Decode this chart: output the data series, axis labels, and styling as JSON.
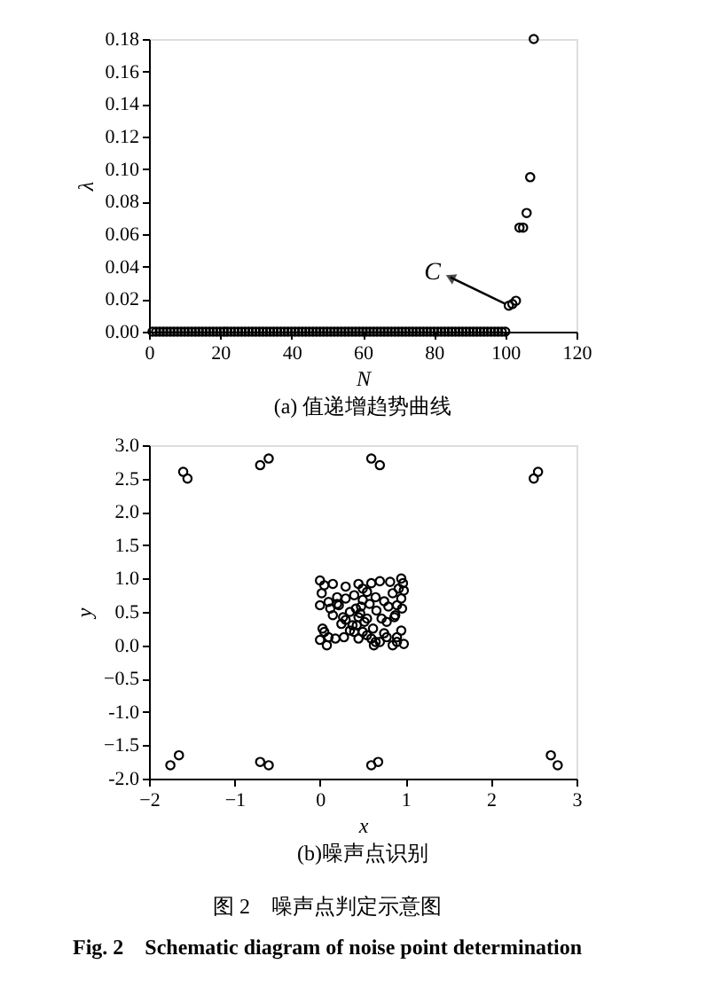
{
  "chart_data": [
    {
      "type": "scatter",
      "title": "(a)  值递增趋势曲线",
      "xlabel": "N",
      "ylabel": "λ",
      "marker": "circle",
      "grid": false,
      "x": [
        1,
        2,
        3,
        4,
        5,
        6,
        7,
        8,
        9,
        10,
        11,
        12,
        13,
        14,
        15,
        16,
        17,
        18,
        19,
        20,
        21,
        22,
        23,
        24,
        25,
        26,
        27,
        28,
        29,
        30,
        31,
        32,
        33,
        34,
        35,
        36,
        37,
        38,
        39,
        40,
        41,
        42,
        43,
        44,
        45,
        46,
        47,
        48,
        49,
        50,
        51,
        52,
        53,
        54,
        55,
        56,
        57,
        58,
        59,
        60,
        61,
        62,
        63,
        64,
        65,
        66,
        67,
        68,
        69,
        70,
        71,
        72,
        73,
        74,
        75,
        76,
        77,
        78,
        79,
        80,
        81,
        82,
        83,
        84,
        85,
        86,
        87,
        88,
        89,
        90,
        91,
        92,
        93,
        94,
        95,
        96,
        97,
        98,
        99,
        100,
        101,
        102,
        103,
        104,
        105,
        106,
        107,
        108
      ],
      "series": [
        {
          "color": "#000000",
          "values": [
            0,
            0,
            0,
            0,
            0,
            0,
            0,
            0,
            0,
            0,
            0,
            0,
            0,
            0,
            0,
            0,
            0,
            0,
            0,
            0,
            0,
            0,
            0,
            0,
            0,
            0,
            0,
            0,
            0,
            0,
            0,
            0,
            0,
            0,
            0,
            0,
            0,
            0,
            0,
            0,
            0,
            0,
            0,
            0,
            0,
            0,
            0,
            0,
            0,
            0,
            0,
            0,
            0,
            0,
            0,
            0,
            0,
            0,
            0,
            0,
            0,
            0,
            0,
            0,
            0,
            0,
            0,
            0,
            0,
            0,
            0,
            0,
            0,
            0,
            0,
            0,
            0,
            0,
            0,
            0,
            0,
            0,
            0,
            0,
            0,
            0,
            0,
            0,
            0,
            0,
            0,
            0,
            0,
            0,
            0,
            0,
            0,
            0,
            0,
            0,
            0.016,
            0.017,
            0.019,
            0.064,
            0.064,
            0.073,
            0.095,
            0.18
          ]
        }
      ],
      "xlim": [
        0,
        120
      ],
      "xticks": [
        0,
        20,
        40,
        60,
        80,
        100,
        120
      ],
      "ylim": [
        0,
        0.18
      ],
      "yticks": [
        {
          "value": 0,
          "label": "0.00"
        },
        0.02,
        0.04,
        0.06,
        0.08,
        {
          "value": 0.1,
          "label": "0.10"
        },
        0.12,
        0.14,
        0.16,
        0.18
      ],
      "annotations": [
        {
          "text": "C",
          "x": 101,
          "y": 0.016
        }
      ]
    },
    {
      "type": "scatter",
      "title": "(b)噪声点识别",
      "xlabel": "x",
      "ylabel": "y",
      "marker": "circle",
      "grid": false,
      "series": [
        {
          "color": "#000000",
          "x": [
            -1.6,
            -1.55,
            -0.7,
            -0.6,
            0.6,
            0.7,
            2.5,
            2.55,
            -1.75,
            -1.65,
            -0.7,
            -0.6,
            0.6,
            0.68,
            2.7,
            2.78,
            0.0,
            0.05,
            0.15,
            0.3,
            0.45,
            0.5,
            0.6,
            0.7,
            0.82,
            0.95,
            0.97,
            0.0,
            0.1,
            0.2,
            0.3,
            0.4,
            0.5,
            0.55,
            0.65,
            0.75,
            0.85,
            0.92,
            0.98,
            0.02,
            0.12,
            0.22,
            0.35,
            0.42,
            0.48,
            0.58,
            0.66,
            0.8,
            0.9,
            0.96,
            0.05,
            0.18,
            0.28,
            0.38,
            0.45,
            0.52,
            0.62,
            0.72,
            0.88,
            0.95,
            0.0,
            0.1,
            0.25,
            0.35,
            0.43,
            0.5,
            0.6,
            0.7,
            0.78,
            0.9,
            0.98,
            0.08,
            0.15,
            0.3,
            0.4,
            0.47,
            0.55,
            0.65,
            0.78,
            0.85,
            0.9,
            0.03,
            0.2,
            0.27,
            0.45,
            0.55,
            0.63,
            0.75,
            0.87,
            0.95
          ],
          "values": [
            2.6,
            2.5,
            2.7,
            2.8,
            2.8,
            2.7,
            2.5,
            2.6,
            -1.8,
            -1.65,
            -1.75,
            -1.8,
            -1.8,
            -1.75,
            -1.65,
            -1.8,
            0.97,
            0.9,
            0.92,
            0.88,
            0.92,
            0.85,
            0.93,
            0.96,
            0.95,
            1.0,
            0.93,
            0.6,
            0.65,
            0.62,
            0.7,
            0.75,
            0.68,
            0.8,
            0.72,
            0.66,
            0.78,
            0.85,
            0.82,
            0.78,
            0.55,
            0.6,
            0.5,
            0.55,
            0.58,
            0.62,
            0.52,
            0.58,
            0.6,
            0.55,
            0.2,
            0.1,
            0.12,
            0.3,
            0.42,
            0.35,
            0.25,
            0.4,
            0.45,
            0.22,
            0.08,
            0.12,
            0.32,
            0.22,
            0.3,
            0.2,
            0.1,
            0.05,
            0.12,
            0.05,
            0.02,
            0.0,
            0.45,
            0.38,
            0.2,
            0.48,
            0.15,
            0.05,
            0.35,
            0.0,
            0.12,
            0.25,
            0.72,
            0.42,
            0.1,
            0.4,
            0.0,
            0.18,
            0.42,
            0.7
          ]
        }
      ],
      "xlim": [
        -2,
        3
      ],
      "xticks": [
        -2,
        -1,
        0,
        1,
        2,
        3
      ],
      "ylim": [
        -2,
        3
      ],
      "yticks": [
        {
          "value": -2,
          "label": "-2.0"
        },
        -1.5,
        {
          "value": -1,
          "label": "-1.0"
        },
        -0.5,
        {
          "value": 0,
          "label": "0.0"
        },
        0.5,
        {
          "value": 1,
          "label": "1.0"
        },
        1.5,
        {
          "value": 2,
          "label": "2.0"
        },
        2.5,
        {
          "value": 3,
          "label": "3.0"
        }
      ],
      "annotations": [
        "图 2　噪声点判定示意图",
        "Fig. 2　Schematic diagram of noise point determination"
      ]
    }
  ]
}
